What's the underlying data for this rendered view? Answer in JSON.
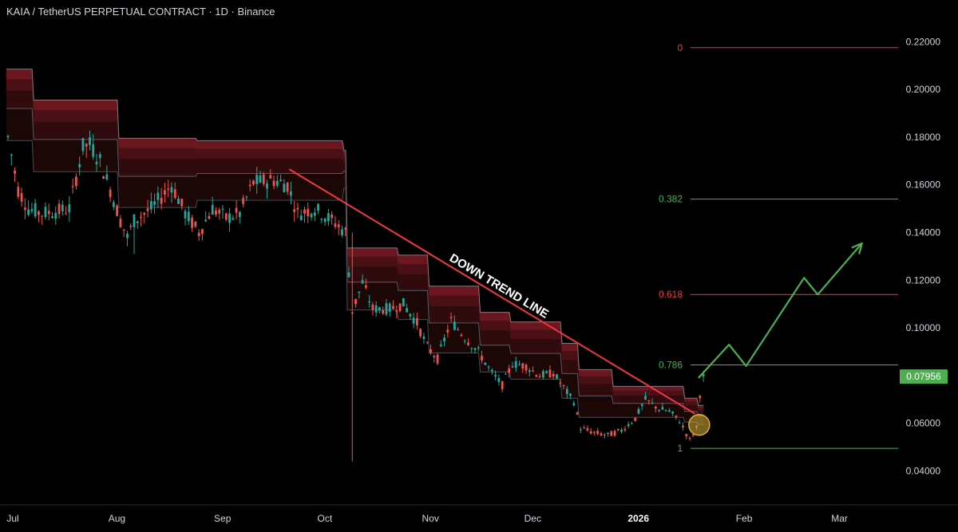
{
  "header": {
    "title": "KAIA / TetherUS PERPETUAL CONTRACT · 1D · Binance"
  },
  "chart_data": {
    "type": "candlestick",
    "title": "KAIA / TetherUS PERPETUAL CONTRACT · 1D · Binance",
    "symbol": "KAIA / TetherUS PERPETUAL CONTRACT",
    "timeframe": "1D",
    "exchange": "Binance",
    "ylim": [
      0.034,
      0.226
    ],
    "y_ticks": [
      "0.22000",
      "0.20000",
      "0.18000",
      "0.16000",
      "0.14000",
      "0.12000",
      "0.10000",
      "0.08000",
      "0.06000",
      "0.04000"
    ],
    "x_ticks": [
      {
        "label": "Jul",
        "day": 0
      },
      {
        "label": "Aug",
        "day": 31
      },
      {
        "label": "Sep",
        "day": 62
      },
      {
        "label": "Oct",
        "day": 92
      },
      {
        "label": "Nov",
        "day": 123
      },
      {
        "label": "Dec",
        "day": 153
      },
      {
        "label": "2026",
        "day": 184,
        "bold": true
      },
      {
        "label": "Feb",
        "day": 215
      },
      {
        "label": "Mar",
        "day": 243
      }
    ],
    "current_price": {
      "label": "0.07956",
      "value": 0.0796,
      "color": "#4caf50"
    },
    "fib_levels": [
      {
        "label": "0",
        "value": 0.2175,
        "color": "#f23645"
      },
      {
        "label": "0.382",
        "value": 0.154,
        "color": "#4caf50"
      },
      {
        "label": "0.618",
        "value": 0.114,
        "color": "#f23645"
      },
      {
        "label": "0.786",
        "value": 0.0845,
        "color": "#4caf50"
      },
      {
        "label": "1",
        "value": 0.0495,
        "color": "#4caf50"
      }
    ],
    "trendline": {
      "label": "DOWN TREND LINE",
      "color": "#f23645",
      "points": [
        {
          "day": 83,
          "price": 0.1665
        },
        {
          "day": 202,
          "price": 0.064
        }
      ]
    },
    "highlight_circle": {
      "day": 203,
      "price": 0.06,
      "color": "#d8b23a"
    },
    "projection": {
      "color": "#4caf50",
      "points": [
        {
          "day": 203,
          "price": 0.079
        },
        {
          "day": 212,
          "price": 0.093
        },
        {
          "day": 217,
          "price": 0.084
        },
        {
          "day": 234,
          "price": 0.121
        },
        {
          "day": 238,
          "price": 0.114
        },
        {
          "day": 251,
          "price": 0.1355
        }
      ]
    },
    "band_steps": [
      {
        "day": 0,
        "top": 0.2085,
        "bottom": 0.1785
      },
      {
        "day": 8,
        "top": 0.1955,
        "bottom": 0.1655
      },
      {
        "day": 33,
        "top": 0.1795,
        "bottom": 0.1505
      },
      {
        "day": 56,
        "top": 0.1785,
        "bottom": 0.1535
      },
      {
        "day": 99,
        "top": 0.1745,
        "bottom": 0.1585
      },
      {
        "day": 100,
        "top": 0.1335,
        "bottom": 0.1075
      },
      {
        "day": 115,
        "top": 0.1305,
        "bottom": 0.1035
      },
      {
        "day": 124,
        "top": 0.1175,
        "bottom": 0.0895
      },
      {
        "day": 139,
        "top": 0.1065,
        "bottom": 0.0815
      },
      {
        "day": 148,
        "top": 0.1025,
        "bottom": 0.0785
      },
      {
        "day": 163,
        "top": 0.0935,
        "bottom": 0.0705
      },
      {
        "day": 168,
        "top": 0.0825,
        "bottom": 0.0625
      },
      {
        "day": 178,
        "top": 0.0755,
        "bottom": 0.0625
      },
      {
        "day": 199,
        "top": 0.0705,
        "bottom": 0.0605
      },
      {
        "day": 203,
        "top": 0.0675,
        "bottom": 0.0595
      }
    ],
    "price_path": [
      {
        "day": 0,
        "price": 0.18
      },
      {
        "day": 3,
        "price": 0.158
      },
      {
        "day": 6,
        "price": 0.15
      },
      {
        "day": 10,
        "price": 0.148
      },
      {
        "day": 15,
        "price": 0.149
      },
      {
        "day": 18,
        "price": 0.15
      },
      {
        "day": 22,
        "price": 0.176
      },
      {
        "day": 24,
        "price": 0.177
      },
      {
        "day": 27,
        "price": 0.17
      },
      {
        "day": 30,
        "price": 0.158
      },
      {
        "day": 33,
        "price": 0.145
      },
      {
        "day": 35,
        "price": 0.138
      },
      {
        "day": 37,
        "price": 0.145
      },
      {
        "day": 42,
        "price": 0.15
      },
      {
        "day": 48,
        "price": 0.16
      },
      {
        "day": 52,
        "price": 0.148
      },
      {
        "day": 56,
        "price": 0.14
      },
      {
        "day": 60,
        "price": 0.15
      },
      {
        "day": 64,
        "price": 0.146
      },
      {
        "day": 68,
        "price": 0.148
      },
      {
        "day": 72,
        "price": 0.161
      },
      {
        "day": 78,
        "price": 0.162
      },
      {
        "day": 82,
        "price": 0.16
      },
      {
        "day": 85,
        "price": 0.148
      },
      {
        "day": 90,
        "price": 0.15
      },
      {
        "day": 96,
        "price": 0.144
      },
      {
        "day": 99,
        "price": 0.14
      },
      {
        "day": 101,
        "price": 0.107
      },
      {
        "day": 104,
        "price": 0.119
      },
      {
        "day": 107,
        "price": 0.108
      },
      {
        "day": 112,
        "price": 0.108
      },
      {
        "day": 116,
        "price": 0.11
      },
      {
        "day": 120,
        "price": 0.102
      },
      {
        "day": 123,
        "price": 0.092
      },
      {
        "day": 126,
        "price": 0.087
      },
      {
        "day": 130,
        "price": 0.103
      },
      {
        "day": 134,
        "price": 0.096
      },
      {
        "day": 138,
        "price": 0.09
      },
      {
        "day": 142,
        "price": 0.081
      },
      {
        "day": 145,
        "price": 0.076
      },
      {
        "day": 148,
        "price": 0.085
      },
      {
        "day": 152,
        "price": 0.084
      },
      {
        "day": 156,
        "price": 0.08
      },
      {
        "day": 160,
        "price": 0.081
      },
      {
        "day": 163,
        "price": 0.075
      },
      {
        "day": 166,
        "price": 0.069
      },
      {
        "day": 168,
        "price": 0.058
      },
      {
        "day": 172,
        "price": 0.056
      },
      {
        "day": 176,
        "price": 0.055
      },
      {
        "day": 180,
        "price": 0.057
      },
      {
        "day": 184,
        "price": 0.062
      },
      {
        "day": 187,
        "price": 0.07
      },
      {
        "day": 191,
        "price": 0.066
      },
      {
        "day": 194,
        "price": 0.065
      },
      {
        "day": 197,
        "price": 0.061
      },
      {
        "day": 200,
        "price": 0.053
      },
      {
        "day": 202,
        "price": 0.058
      },
      {
        "day": 203,
        "price": 0.072
      },
      {
        "day": 204,
        "price": 0.0796
      }
    ],
    "wicks": [
      {
        "day": 37,
        "low": 0.131
      },
      {
        "day": 101,
        "high": 0.14,
        "low": 0.044
      }
    ]
  }
}
